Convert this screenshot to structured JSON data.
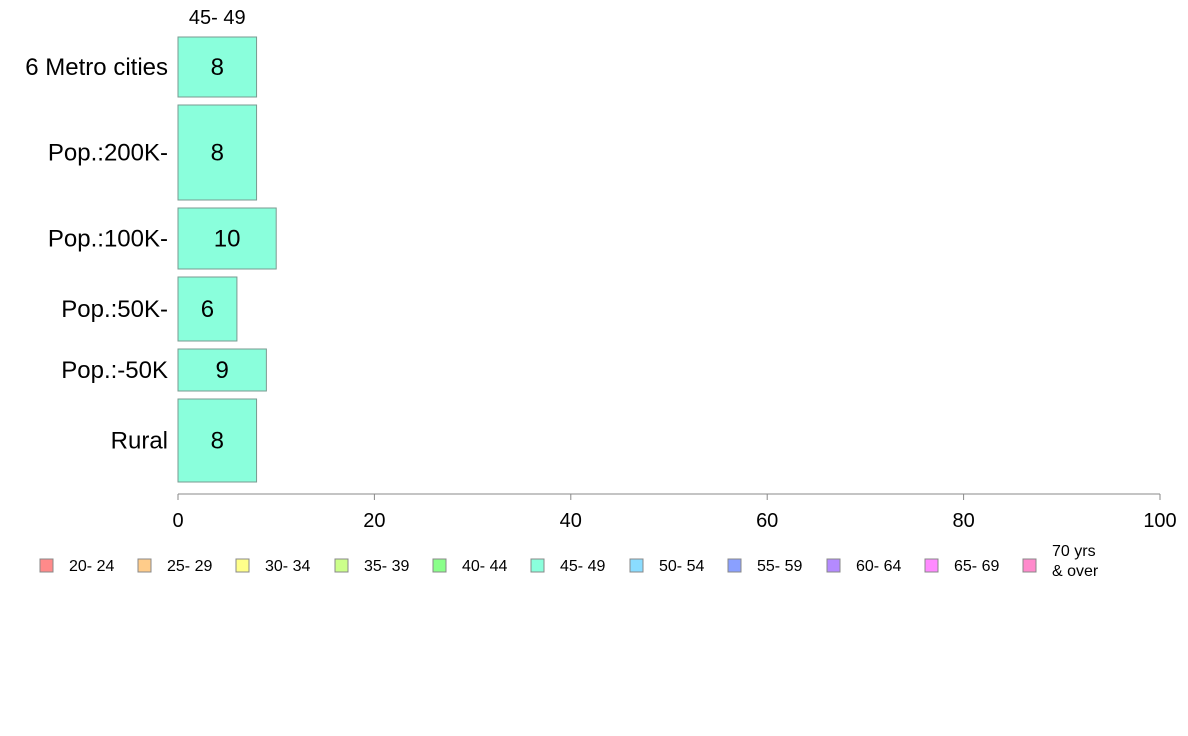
{
  "chart_data": {
    "type": "bar",
    "orientation": "horizontal",
    "stacked": true,
    "title": "",
    "xlabel": "",
    "ylabel": "",
    "categories": [
      "6 Metro cities",
      "Pop.:200K-",
      "Pop.:100K-",
      "Pop.:50K-",
      "Pop.:-50K",
      "Rural"
    ],
    "series": [
      {
        "name": "45- 49",
        "color": "#8affdc",
        "values": [
          8,
          8,
          10,
          6,
          9,
          8
        ]
      }
    ],
    "segment_header": "45- 49",
    "xlim": [
      0,
      100
    ],
    "xticks": [
      0,
      20,
      40,
      60,
      80,
      100
    ],
    "grid": false,
    "legend_position": "bottom",
    "legend": [
      {
        "label": "20- 24",
        "color": "#ff8a8a"
      },
      {
        "label": "25- 29",
        "color": "#ffcc8a"
      },
      {
        "label": "30- 34",
        "color": "#ffff8a"
      },
      {
        "label": "35- 39",
        "color": "#ccff8a"
      },
      {
        "label": "40- 44",
        "color": "#8aff8a"
      },
      {
        "label": "45- 49",
        "color": "#8affdc"
      },
      {
        "label": "50- 54",
        "color": "#8adcff"
      },
      {
        "label": "55- 59",
        "color": "#8aa0ff"
      },
      {
        "label": "60- 64",
        "color": "#b48aff"
      },
      {
        "label": "65- 69",
        "color": "#ff8aff"
      },
      {
        "label": "70 yrs\n& over",
        "color": "#ff8acc"
      }
    ]
  }
}
